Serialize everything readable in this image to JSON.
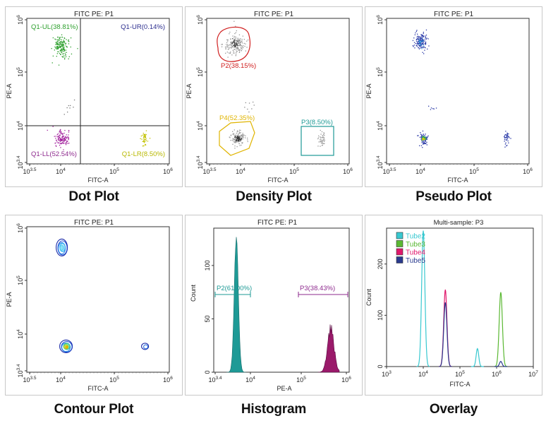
{
  "chart_data": [
    {
      "type": "scatter",
      "caption": "Dot Plot",
      "title": "FITC PE: P1",
      "xlabel": "FITC-A",
      "ylabel": "PE-A",
      "x_ticks": [
        "10^3.5",
        "10^4",
        "10^5",
        "10^6"
      ],
      "y_ticks": [
        "10^3.4",
        "10^4",
        "10^5",
        "10^6"
      ],
      "log_scale": true,
      "gate_lines": {
        "x": 25000,
        "y": 10000
      },
      "quadrants": [
        {
          "label": "Q1-UL(38.81%)",
          "color": "#2ea02e",
          "position": "top-left"
        },
        {
          "label": "Q1-UR(0.14%)",
          "color": "#2b2d8e",
          "position": "top-right"
        },
        {
          "label": "Q1-LL(52.54%)",
          "color": "#8e2a8e",
          "position": "bottom-left"
        },
        {
          "label": "Q1-LR(8.50%)",
          "color": "#b8b800",
          "position": "bottom-right"
        }
      ],
      "clusters": [
        {
          "x": 10000,
          "y": 300000,
          "color": "#2ea02e"
        },
        {
          "x": 10000,
          "y": 5000,
          "color": "#a3249e"
        },
        {
          "x": 400000,
          "y": 5000,
          "color": "#c2c200"
        }
      ]
    },
    {
      "type": "scatter",
      "caption": "Density Plot",
      "title": "FITC PE: P1",
      "xlabel": "FITC-A",
      "ylabel": "PE-A",
      "x_ticks": [
        "10^3.5",
        "10^4",
        "10^5",
        "10^6"
      ],
      "y_ticks": [
        "10^3.4",
        "10^4",
        "10^5",
        "10^6"
      ],
      "log_scale": true,
      "gates": [
        {
          "label": "P2(38.15%)",
          "color": "#d02020"
        },
        {
          "label": "P4(52.35%)",
          "color": "#e0b400"
        },
        {
          "label": "P3(8.50%)",
          "color": "#1e9a96"
        }
      ]
    },
    {
      "type": "scatter",
      "caption": "Pseudo Plot",
      "title": "FITC PE: P1",
      "xlabel": "FITC-A",
      "ylabel": "PE-A",
      "x_ticks": [
        "10^3.5",
        "10^4",
        "10^5",
        "10^6"
      ],
      "y_ticks": [
        "10^3.4",
        "10^4",
        "10^5",
        "10^6"
      ],
      "log_scale": true
    },
    {
      "type": "contour",
      "caption": "Contour Plot",
      "title": "FITC PE: P1",
      "xlabel": "FITC-A",
      "ylabel": "PE-A",
      "x_ticks": [
        "10^3.5",
        "10^4",
        "10^5",
        "10^6"
      ],
      "y_ticks": [
        "10^3.4",
        "10^4",
        "10^5",
        "10^6"
      ],
      "log_scale": true
    },
    {
      "type": "histogram",
      "caption": "Histogram",
      "title": "FITC PE: P1",
      "xlabel": "PE-A",
      "ylabel": "Count",
      "x_ticks": [
        "10^3.4",
        "10^4",
        "10^5",
        "10^6"
      ],
      "y_ticks": [
        "0",
        "50",
        "100"
      ],
      "ylim": [
        0,
        135
      ],
      "gates": [
        {
          "label": "P2(61.00%)",
          "color": "#1e9a96"
        },
        {
          "label": "P3(38.43%)",
          "color": "#8e2a8e"
        }
      ],
      "peaks": [
        {
          "x": 4000,
          "height": 130,
          "color": "#1e9a96"
        },
        {
          "x": 400000,
          "height": 48,
          "color": "#9a1a6a"
        }
      ]
    },
    {
      "type": "histogram",
      "caption": "Overlay",
      "title": "Multi-sample: P3",
      "xlabel": "FITC-A",
      "ylabel": "Count",
      "x_ticks": [
        "10^3",
        "10^4",
        "10^5",
        "10^6",
        "10^7"
      ],
      "y_ticks": [
        "0",
        "100",
        "200"
      ],
      "ylim": [
        0,
        270
      ],
      "series": [
        {
          "name": "Tube2",
          "color": "#38c8d0",
          "peaks": [
            {
              "x": 10000,
              "y": 265
            },
            {
              "x": 300000,
              "y": 35
            }
          ]
        },
        {
          "name": "Tube3",
          "color": "#5ab832",
          "peaks": [
            {
              "x": 1300000,
              "y": 145
            }
          ]
        },
        {
          "name": "Tube4",
          "color": "#e0186c",
          "peaks": [
            {
              "x": 40000,
              "y": 150
            }
          ]
        },
        {
          "name": "Tube5",
          "color": "#2a3a8e",
          "peaks": [
            {
              "x": 40000,
              "y": 125
            },
            {
              "x": 1300000,
              "y": 10
            }
          ]
        }
      ]
    }
  ]
}
